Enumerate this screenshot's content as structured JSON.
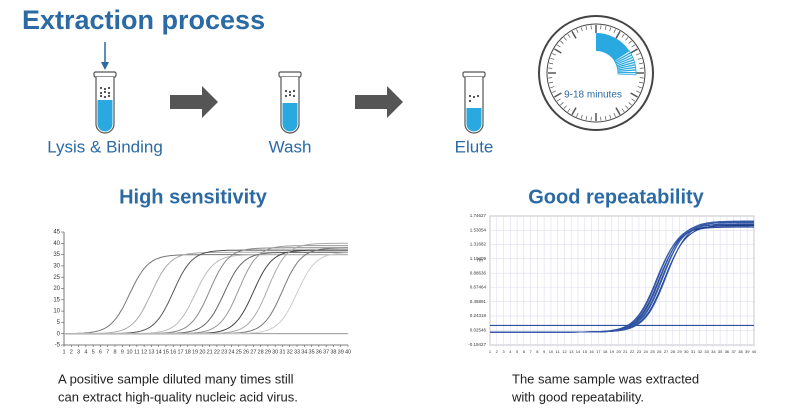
{
  "title": "Extraction process",
  "steps": [
    "Lysis & Binding",
    "Wash",
    "Elute"
  ],
  "time_label": "9-18 minutes",
  "left_panel": {
    "heading": "High sensitivity",
    "caption": [
      "A positive sample diluted many times still",
      "can extract high-quality nucleic acid virus."
    ],
    "xlim": [
      1,
      40
    ],
    "ylim": [
      -5,
      45
    ],
    "xticks": [
      1,
      2,
      3,
      4,
      5,
      6,
      7,
      8,
      9,
      10,
      11,
      12,
      13,
      14,
      15,
      16,
      17,
      18,
      19,
      20,
      21,
      22,
      23,
      24,
      25,
      26,
      27,
      28,
      29,
      30,
      31,
      32,
      33,
      34,
      35,
      36,
      37,
      38,
      39,
      40
    ],
    "yticks": [
      -5,
      0,
      5,
      10,
      15,
      20,
      25,
      30,
      35,
      40,
      45
    ],
    "curves": [
      {
        "ct": 10,
        "plateau": 35
      },
      {
        "ct": 13,
        "plateau": 36
      },
      {
        "ct": 16,
        "plateau": 37
      },
      {
        "ct": 19,
        "plateau": 35
      },
      {
        "ct": 21,
        "plateau": 38
      },
      {
        "ct": 23,
        "plateau": 36
      },
      {
        "ct": 25,
        "plateau": 39
      },
      {
        "ct": 27,
        "plateau": 37
      },
      {
        "ct": 29,
        "plateau": 40
      },
      {
        "ct": 31,
        "plateau": 38
      },
      {
        "ct": 33,
        "plateau": 36
      }
    ]
  },
  "right_panel": {
    "heading": "Good repeatability",
    "caption": [
      "The same sample was extracted",
      "with good repeatability."
    ],
    "y_label": "Rn",
    "xlim": [
      1,
      40
    ],
    "ylim": [
      -0.19427,
      1.74627
    ],
    "xticks": [
      1,
      2,
      3,
      4,
      5,
      6,
      7,
      8,
      9,
      10,
      11,
      12,
      13,
      14,
      15,
      16,
      17,
      18,
      19,
      20,
      21,
      22,
      23,
      24,
      25,
      26,
      27,
      28,
      29,
      30,
      31,
      32,
      33,
      34,
      35,
      36,
      37,
      38,
      39,
      40
    ],
    "yticks": [
      -0.19427,
      0.02546,
      0.24318,
      0.45891,
      0.67464,
      0.88636,
      1.10409,
      1.31682,
      1.53054,
      1.74627
    ],
    "threshold": 0.1,
    "curves": [
      {
        "ct": 25.6,
        "plateau": 1.58
      },
      {
        "ct": 25.8,
        "plateau": 1.62
      },
      {
        "ct": 26.0,
        "plateau": 1.6
      },
      {
        "ct": 26.2,
        "plateau": 1.65
      },
      {
        "ct": 26.4,
        "plateau": 1.63
      },
      {
        "ct": 26.6,
        "plateau": 1.67
      },
      {
        "ct": 26.8,
        "plateau": 1.61
      },
      {
        "ct": 27.0,
        "plateau": 1.66
      }
    ]
  }
}
